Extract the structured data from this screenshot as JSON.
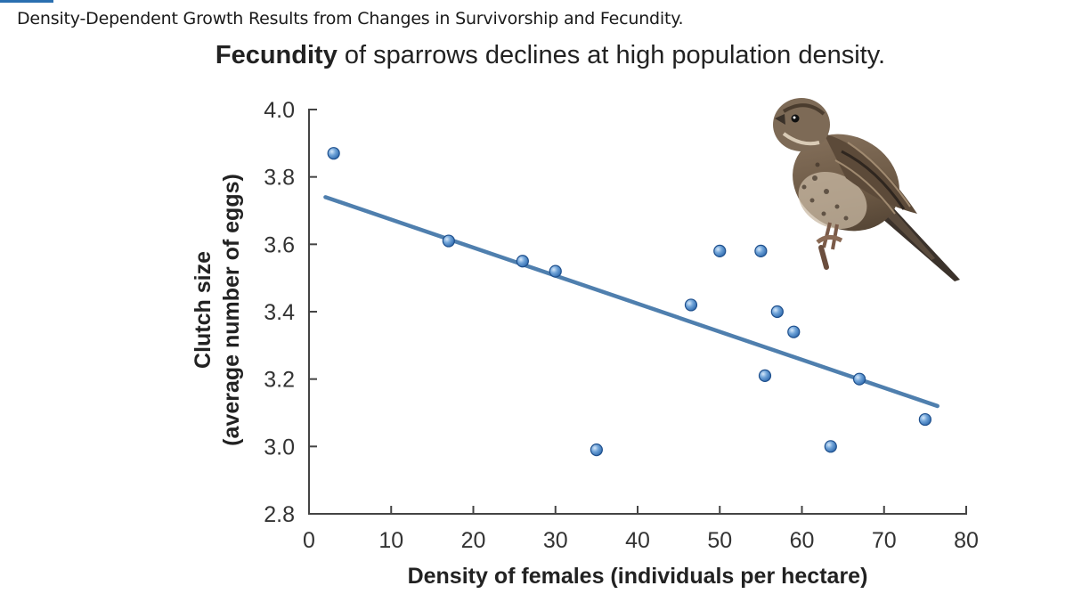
{
  "caption": "Density-Dependent Growth Results from Changes in Survivorship and Fecundity.",
  "chart_data": {
    "type": "scatter",
    "title_bold": "Fecundity",
    "title_rest": " of sparrows declines at high population density.",
    "xlabel": "Density of females (individuals per hectare)",
    "ylabel_line1": "Clutch size",
    "ylabel_line2": "(average number of eggs)",
    "xlim": [
      0,
      80
    ],
    "ylim": [
      2.8,
      4.0
    ],
    "xticks": [
      0,
      10,
      20,
      30,
      40,
      50,
      60,
      70,
      80
    ],
    "yticks": [
      2.8,
      3.0,
      3.2,
      3.4,
      3.6,
      3.8,
      4.0
    ],
    "xtick_labels": [
      "0",
      "10",
      "20",
      "30",
      "40",
      "50",
      "60",
      "70",
      "80"
    ],
    "ytick_labels": [
      "2.8",
      "3.0",
      "3.2",
      "3.4",
      "3.6",
      "3.8",
      "4.0"
    ],
    "grid": false,
    "points": [
      {
        "x": 3,
        "y": 3.87
      },
      {
        "x": 17,
        "y": 3.61
      },
      {
        "x": 26,
        "y": 3.55
      },
      {
        "x": 30,
        "y": 3.52
      },
      {
        "x": 35,
        "y": 2.99
      },
      {
        "x": 46.5,
        "y": 3.42
      },
      {
        "x": 50,
        "y": 3.58
      },
      {
        "x": 55,
        "y": 3.58
      },
      {
        "x": 55.5,
        "y": 3.21
      },
      {
        "x": 57,
        "y": 3.4
      },
      {
        "x": 59,
        "y": 3.34
      },
      {
        "x": 63.5,
        "y": 3.0
      },
      {
        "x": 67,
        "y": 3.2
      },
      {
        "x": 75,
        "y": 3.08
      }
    ],
    "trendline": {
      "x": [
        2,
        76.5
      ],
      "y": [
        3.74,
        3.12
      ]
    },
    "colors": {
      "point": "#5b94cf",
      "point_edge": "#1e4f8c",
      "line": "#4f7fae",
      "axis": "#444444"
    },
    "illustration": "sparrow-icon"
  }
}
